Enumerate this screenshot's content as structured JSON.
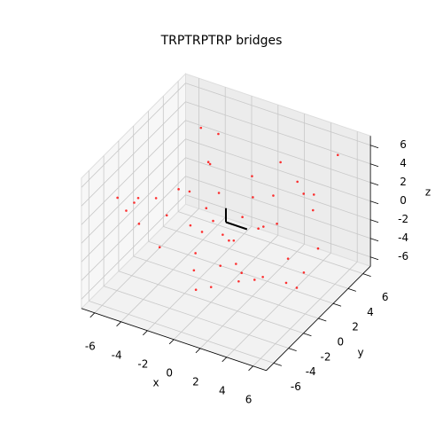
{
  "chart_data": {
    "type": "scatter3d",
    "title": "TRPTRPTRP bridges",
    "xlabel": "x",
    "ylabel": "y",
    "zlabel": "z",
    "xlim": [
      -7,
      7
    ],
    "ylim": [
      -7,
      7
    ],
    "zlim": [
      -7,
      7
    ],
    "xticks": [
      -6,
      -4,
      -2,
      0,
      2,
      4,
      6
    ],
    "yticks": [
      -6,
      -4,
      -2,
      0,
      2,
      4,
      6
    ],
    "zticks": [
      -6,
      -4,
      -2,
      0,
      2,
      4,
      6
    ],
    "grid": true,
    "series": [
      {
        "color": "#ff0000",
        "x": [
          -5.2,
          -4.1,
          -3.6,
          -2.9,
          -1.8,
          -0.7,
          0.4,
          1.3,
          2.6,
          3.8,
          4.9,
          5.6,
          -5.8,
          -3.2,
          -1.1,
          1.9,
          3.1,
          5.1,
          -4.6,
          -2.2,
          0.8,
          2.2,
          4.4,
          6.1,
          -6.2,
          -3.9,
          -0.3,
          1.6,
          3.5,
          5.4,
          -5.0,
          -2.6,
          0.1,
          2.9,
          4.2,
          -1.5,
          1.1,
          3.9,
          -4.4,
          0.6,
          -2.0,
          2.4,
          4.7,
          -3.4,
          5.9,
          -0.9,
          1.7,
          -5.5,
          3.3,
          0.2
        ],
        "y": [
          -3.1,
          2.5,
          -5.4,
          4.2,
          -1.7,
          5.6,
          -4.8,
          1.2,
          -2.9,
          3.7,
          -0.6,
          5.1,
          0.9,
          -6.0,
          3.0,
          -3.8,
          6.2,
          -5.2,
          4.8,
          -0.4,
          2.2,
          -5.9,
          1.8,
          -1.3,
          -2.4,
          5.9,
          -3.5,
          4.5,
          -4.1,
          2.8,
          -5.7,
          1.4,
          -1.9,
          3.2,
          -6.1,
          0.3,
          -2.7,
          4.9,
          -1.1,
          5.3,
          -4.4,
          0.7,
          -3.3,
          3.9,
          0.0,
          2.0,
          -0.8,
          3.4,
          1.0,
          -3.0
        ],
        "z": [
          2.1,
          -4.3,
          5.2,
          -1.6,
          3.8,
          -5.5,
          0.7,
          4.6,
          -2.8,
          1.9,
          -3.7,
          5.8,
          -0.9,
          3.1,
          -4.9,
          2.6,
          -2.2,
          0.4,
          4.1,
          -5.9,
          1.3,
          -1.2,
          5.0,
          -3.1,
          0.2,
          2.9,
          -4.6,
          3.6,
          -0.5,
          -2.5,
          4.8,
          -3.4,
          1.7,
          -5.1,
          2.4,
          5.5,
          -2.0,
          0.9,
          -3.9,
          -1.1,
          3.3,
          -5.3,
          4.4,
          1.5,
          -2.6,
          -4.0,
          2.0,
          -1.8,
          0.6,
          4.0
        ]
      },
      {
        "color": "#000000",
        "x": [
          0,
          0
        ],
        "y": [
          0,
          0
        ],
        "z": [
          0,
          1.5
        ]
      },
      {
        "color": "#000000",
        "x": [
          0,
          1.6
        ],
        "y": [
          0,
          0
        ],
        "z": [
          0,
          0
        ]
      }
    ]
  }
}
